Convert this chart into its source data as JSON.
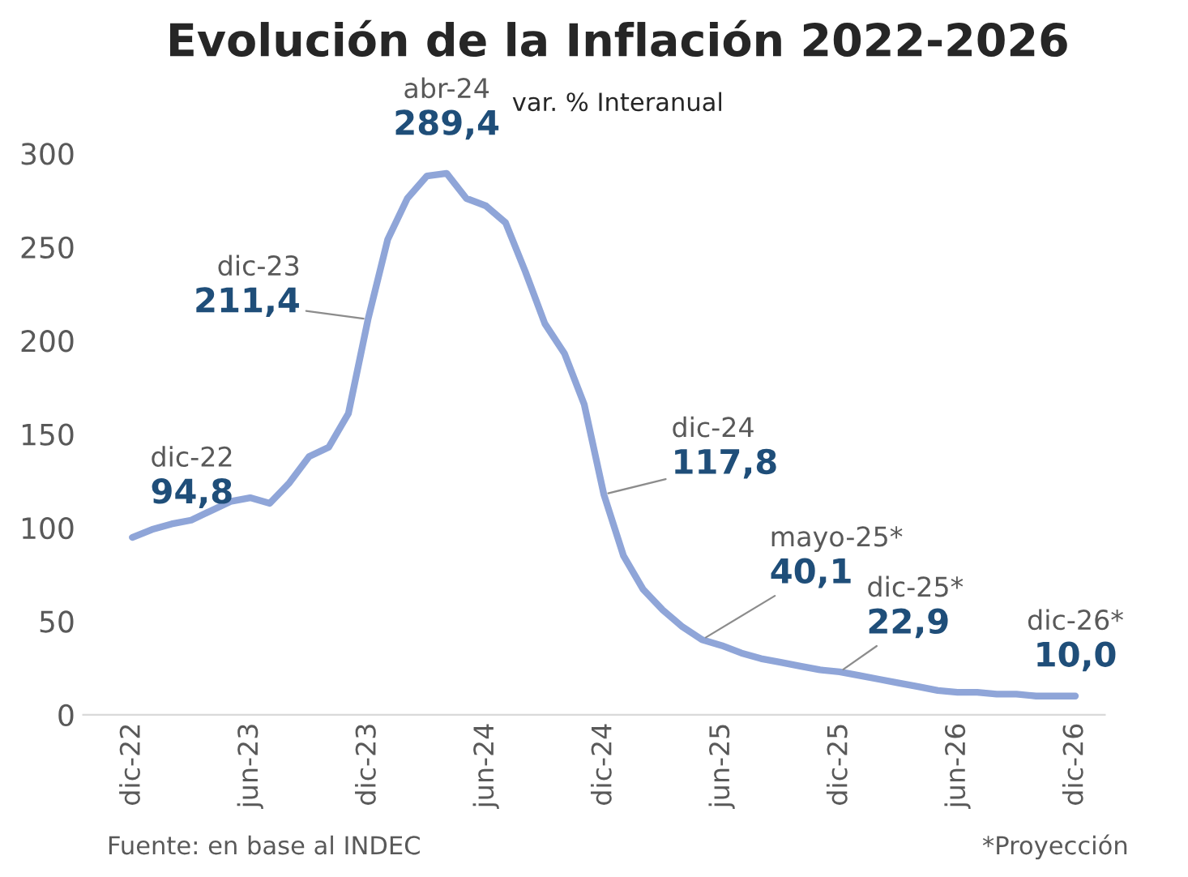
{
  "chart_data": {
    "type": "line",
    "title": "Evolución de la Inflación 2022-2026",
    "subtitle": "var. % Interanual",
    "categories": [
      "dic-22",
      null,
      null,
      null,
      null,
      null,
      "jun-23",
      null,
      null,
      null,
      null,
      null,
      "dic-23",
      null,
      null,
      null,
      null,
      null,
      "jun-24",
      null,
      null,
      null,
      null,
      null,
      "dic-24",
      null,
      null,
      null,
      null,
      null,
      "jun-25",
      null,
      null,
      null,
      null,
      null,
      "dic-25",
      null,
      null,
      null,
      null,
      null,
      "jun-26",
      null,
      null,
      null,
      null,
      null,
      "dic-26"
    ],
    "series": [
      {
        "color": "#8fa5d8",
        "values": [
          94.8,
          99,
          102,
          104,
          109,
          114,
          116,
          113,
          124,
          138,
          143,
          161,
          211.4,
          254,
          276,
          288,
          289.4,
          276,
          272,
          263,
          237,
          209,
          193,
          166,
          117.8,
          85,
          67,
          56,
          47,
          40.1,
          37,
          33,
          30,
          28,
          26,
          24,
          22.9,
          21,
          19,
          17,
          15,
          13,
          12,
          12,
          11,
          11,
          10,
          10,
          10.0
        ],
        "value_labels": [
          "dic-22\n94,8",
          null,
          null,
          null,
          null,
          null,
          null,
          null,
          null,
          null,
          null,
          null,
          "dic-23\n211,4",
          null,
          null,
          null,
          "abr-24\n289,4",
          null,
          null,
          null,
          null,
          null,
          null,
          null,
          "dic-24\n117,8",
          null,
          null,
          null,
          null,
          "mayo-25*\n40,1",
          null,
          null,
          null,
          null,
          null,
          null,
          "dic-25*\n22,9",
          null,
          null,
          null,
          null,
          null,
          null,
          null,
          null,
          null,
          null,
          null,
          "dic-26*\n10,0"
        ]
      }
    ],
    "ylim": [
      0,
      300
    ],
    "yticks": [
      0,
      50,
      100,
      150,
      200,
      250,
      300
    ],
    "grid": false,
    "marker": "none",
    "line_style": "solid",
    "annotations": [
      "Fuente: en base al INDEC",
      "*Proyección"
    ]
  }
}
